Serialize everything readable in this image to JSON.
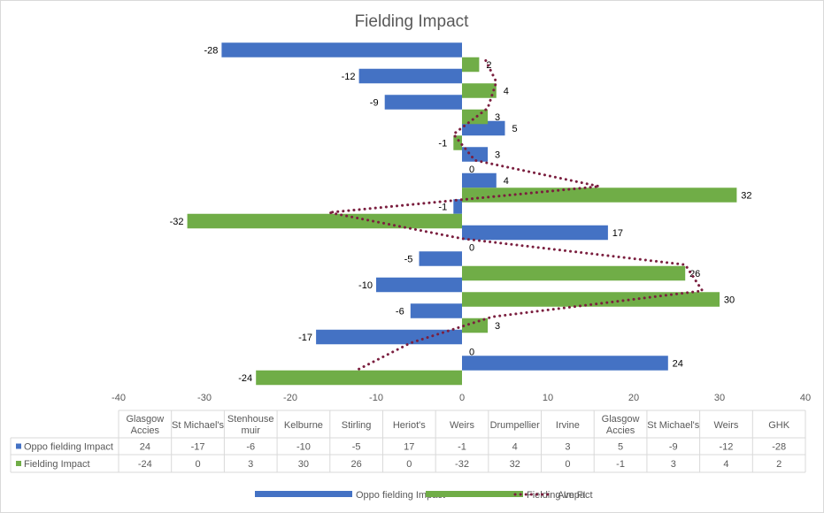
{
  "chart_data": {
    "type": "bar",
    "orientation": "horizontal",
    "title": "Fielding Impact",
    "categories": [
      "Glasgow Accies",
      "St Michael's",
      "Stenhouse muir",
      "Kelburne",
      "Stirling",
      "Heriot's",
      "Weirs",
      "Drumpellier",
      "Irvine",
      "Glasgow Accies",
      "St Michael's",
      "Weirs",
      "GHK"
    ],
    "category_lines": [
      [
        "Glasgow",
        "Accies"
      ],
      [
        "St Michael's"
      ],
      [
        "Stenhouse",
        "muir"
      ],
      [
        "Kelburne"
      ],
      [
        "Stirling"
      ],
      [
        "Heriot's"
      ],
      [
        "Weirs"
      ],
      [
        "Drumpellier"
      ],
      [
        "Irvine"
      ],
      [
        "Glasgow",
        "Accies"
      ],
      [
        "St Michael's"
      ],
      [
        "Weirs"
      ],
      [
        "GHK"
      ]
    ],
    "series": [
      {
        "name": "Oppo fielding Impact",
        "color": "#4472C4",
        "values": [
          24,
          -17,
          -6,
          -10,
          -5,
          17,
          -1,
          4,
          3,
          5,
          -9,
          -12,
          -28
        ]
      },
      {
        "name": "Fielding Impact",
        "color": "#70AD47",
        "values": [
          -24,
          0,
          3,
          30,
          26,
          0,
          -32,
          32,
          0,
          -1,
          3,
          4,
          2
        ]
      }
    ],
    "trendline": {
      "name": "Ave FI",
      "color": "#7B1F3F",
      "style": "dotted",
      "values": [
        -12,
        -6,
        3.5,
        28,
        26,
        0,
        -15.5,
        16,
        1.5,
        -1,
        3,
        4,
        2.5
      ]
    },
    "xlim": [
      -40,
      40
    ],
    "xticks": [
      -40,
      -30,
      -20,
      -10,
      0,
      10,
      20,
      30,
      40
    ],
    "legend_position": "bottom",
    "data_table": true
  }
}
